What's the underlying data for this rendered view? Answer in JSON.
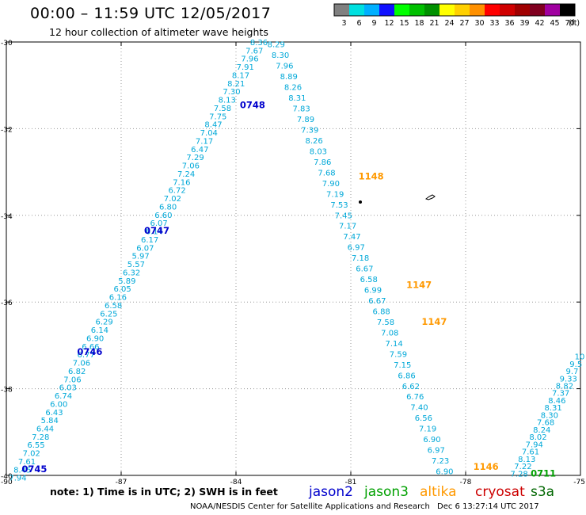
{
  "header": {
    "title": "00:00 – 11:59 UTC 12/05/2017",
    "subtitle": "12 hour collection of altimeter wave heights"
  },
  "legend": {
    "unit": "(ft)",
    "bins": [
      {
        "label": "3",
        "color": "#808080"
      },
      {
        "label": "6",
        "color": "#00e0e0"
      },
      {
        "label": "9",
        "color": "#00b0ff"
      },
      {
        "label": "12",
        "color": "#1010ff"
      },
      {
        "label": "15",
        "color": "#00ff00"
      },
      {
        "label": "18",
        "color": "#00c000"
      },
      {
        "label": "21",
        "color": "#009000"
      },
      {
        "label": "24",
        "color": "#ffff00"
      },
      {
        "label": "27",
        "color": "#ffd000"
      },
      {
        "label": "30",
        "color": "#ff9000"
      },
      {
        "label": "33",
        "color": "#ff0000"
      },
      {
        "label": "36",
        "color": "#d00000"
      },
      {
        "label": "39",
        "color": "#a00000"
      },
      {
        "label": "42",
        "color": "#800020"
      },
      {
        "label": "45",
        "color": "#a000a0"
      },
      {
        "label": "70",
        "color": "#000000"
      }
    ]
  },
  "axes": {
    "lat_labels": [
      "-30",
      "-32",
      "-34",
      "-36",
      "-38",
      "-40"
    ],
    "lon_labels": [
      "-90",
      "-87",
      "-84",
      "-81",
      "-78",
      "-75"
    ]
  },
  "colors": {
    "track_text": "#00a8d8",
    "time_label_jason2": "#0000cc",
    "time_label_altika": "#ff9900",
    "time_label_jason3": "#00a000",
    "grid": "#999999"
  },
  "tracks": [
    {
      "id": "t1",
      "mission": "jason2",
      "start": [
        -83.4,
        -30.0
      ],
      "end": [
        -89.7,
        -40.05
      ],
      "values": [
        "8.36",
        "7.67",
        "7.96",
        "7.91",
        "8.17",
        "8.21",
        "7.30",
        "8.13",
        "7.58",
        "7.75",
        "8.47",
        "7.04",
        "7.17",
        "6.47",
        "7.29",
        "7.06",
        "7.24",
        "7.16",
        "6.72",
        "7.02",
        "6.80",
        "6.60",
        "6.07",
        "6.14",
        "6.17",
        "6.07",
        "5.97",
        "5.57",
        "6.32",
        "5.89",
        "6.05",
        "6.16",
        "6.58",
        "6.25",
        "6.29",
        "6.14",
        "6.90",
        "6.66",
        "6.77",
        "7.06",
        "6.82",
        "7.06",
        "6.03",
        "6.74",
        "6.00",
        "6.43",
        "5.84",
        "6.44",
        "7.28",
        "6.55",
        "7.02",
        "7.61",
        "8.45",
        "7.94"
      ]
    },
    {
      "id": "t2",
      "mission": "altika",
      "start": [
        -82.95,
        -30.05
      ],
      "end": [
        -78.55,
        -39.9
      ],
      "values": [
        "8.29",
        "8.30",
        "7.96",
        "8.89",
        "8.26",
        "8.31",
        "7.83",
        "7.89",
        "7.39",
        "8.26",
        "8.03",
        "7.86",
        "7.68",
        "7.90",
        "7.19",
        "7.53",
        "7.45",
        "7.17",
        "7.47",
        "6.97",
        "7.18",
        "6.67",
        "6.58",
        "6.99",
        "6.67",
        "6.88",
        "7.58",
        "7.08",
        "7.14",
        "7.59",
        "7.15",
        "6.86",
        "6.62",
        "6.76",
        "7.40",
        "6.56",
        "7.19",
        "6.90",
        "6.97",
        "7.23",
        "6.90"
      ]
    },
    {
      "id": "t3",
      "mission": "jason3",
      "start": [
        -75.02,
        -37.25
      ],
      "end": [
        -76.6,
        -39.95
      ],
      "values": [
        "10",
        "9.5",
        "9.7",
        "9.33",
        "8.82",
        "7.37",
        "8.46",
        "8.31",
        "8.30",
        "7.68",
        "8.24",
        "8.02",
        "7.94",
        "7.61",
        "8.13",
        "7.22",
        "7.28"
      ]
    }
  ],
  "time_labels": [
    {
      "text": "0748",
      "mission": "jason2",
      "lon": -83.9,
      "lat": -31.45
    },
    {
      "text": "0747",
      "mission": "jason2",
      "lon": -86.4,
      "lat": -34.35
    },
    {
      "text": "0746",
      "mission": "jason2",
      "lon": -88.15,
      "lat": -37.15
    },
    {
      "text": "0745",
      "mission": "jason2",
      "lon": -89.6,
      "lat": -39.85
    },
    {
      "text": "1148",
      "mission": "altika",
      "lon": -80.8,
      "lat": -33.1
    },
    {
      "text": "1147",
      "mission": "altika",
      "lon": -79.55,
      "lat": -35.6
    },
    {
      "text": "1147",
      "mission": "altika",
      "lon": -79.15,
      "lat": -36.45
    },
    {
      "text": "1146",
      "mission": "altika",
      "lon": -77.8,
      "lat": -39.8
    },
    {
      "text": "0711",
      "mission": "jason3",
      "lon": -76.3,
      "lat": -39.95
    }
  ],
  "footer": {
    "note": "note: 1) Time is in UTC; 2) SWH is in feet",
    "missions": [
      {
        "name": "jason2",
        "color": "#0000cc"
      },
      {
        "name": "jason3",
        "color": "#00a000"
      },
      {
        "name": "altika",
        "color": "#ff9900"
      },
      {
        "name": "cryosat",
        "color": "#cc0000"
      },
      {
        "name": "s3a",
        "color": "#006600"
      }
    ],
    "credit": "NOAA/NESDIS Center for Satellite Applications and Research",
    "timestamp": "Dec  6 13:27:14 UTC 2017"
  }
}
